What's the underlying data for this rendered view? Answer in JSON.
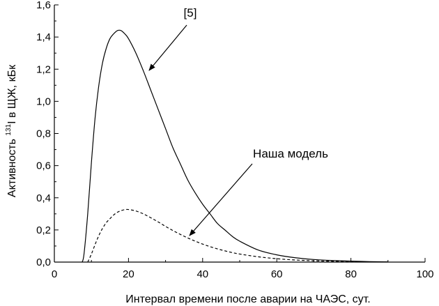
{
  "chart_data": {
    "type": "line",
    "xlabel": "Интервал времени после аварии на ЧАЭС, сут.",
    "ylabel": {
      "prefix": "Активность ",
      "superscript": "131",
      "suffix": "I в ЩЖ, кБк"
    },
    "xlim": [
      0,
      100
    ],
    "ylim": [
      0,
      1.6
    ],
    "xticks": [
      0,
      20,
      40,
      60,
      80,
      100
    ],
    "xtick_labels": [
      "0",
      "20",
      "40",
      "60",
      "80",
      "100"
    ],
    "yticks": [
      0,
      0.2,
      0.4,
      0.6,
      0.8,
      1.0,
      1.2,
      1.4,
      1.6
    ],
    "ytick_labels": [
      "0,0",
      "0,2",
      "0,4",
      "0,6",
      "0,8",
      "1,0",
      "1,2",
      "1,4",
      "1,6"
    ],
    "grid": false,
    "series": [
      {
        "name": "[5]",
        "style": "solid",
        "color": "#000000",
        "x": [
          7.5,
          8,
          9,
          10,
          11,
          12,
          13,
          14,
          15,
          16,
          17,
          18,
          19,
          20,
          22,
          24,
          26,
          28,
          30,
          32,
          34,
          36,
          38,
          40,
          42,
          44,
          46,
          48,
          50,
          55,
          60,
          65,
          70,
          75,
          80,
          85,
          90
        ],
        "y": [
          0.0,
          0.05,
          0.3,
          0.62,
          0.9,
          1.1,
          1.24,
          1.33,
          1.39,
          1.42,
          1.44,
          1.44,
          1.42,
          1.39,
          1.3,
          1.19,
          1.07,
          0.95,
          0.83,
          0.71,
          0.61,
          0.51,
          0.43,
          0.36,
          0.3,
          0.24,
          0.2,
          0.16,
          0.13,
          0.075,
          0.045,
          0.027,
          0.016,
          0.01,
          0.006,
          0.003,
          0.001
        ]
      },
      {
        "name": "Наша модель",
        "style": "dashed",
        "color": "#000000",
        "x": [
          9,
          10,
          11,
          12,
          13,
          14,
          15,
          16,
          17,
          18,
          19,
          20,
          22,
          24,
          26,
          28,
          30,
          32,
          34,
          36,
          38,
          40,
          42,
          44,
          46,
          48,
          50,
          55,
          60,
          65,
          70,
          75,
          80,
          85,
          90
        ],
        "y": [
          0.0,
          0.05,
          0.11,
          0.165,
          0.21,
          0.245,
          0.27,
          0.293,
          0.31,
          0.32,
          0.326,
          0.327,
          0.318,
          0.3,
          0.276,
          0.25,
          0.222,
          0.196,
          0.172,
          0.15,
          0.13,
          0.112,
          0.096,
          0.082,
          0.07,
          0.059,
          0.05,
          0.033,
          0.021,
          0.013,
          0.008,
          0.005,
          0.003,
          0.0015,
          0.0005
        ]
      }
    ],
    "annotations": [
      {
        "text": "[5]",
        "series": "[5]"
      },
      {
        "text": "Наша модель",
        "series": "Наша модель"
      }
    ]
  }
}
